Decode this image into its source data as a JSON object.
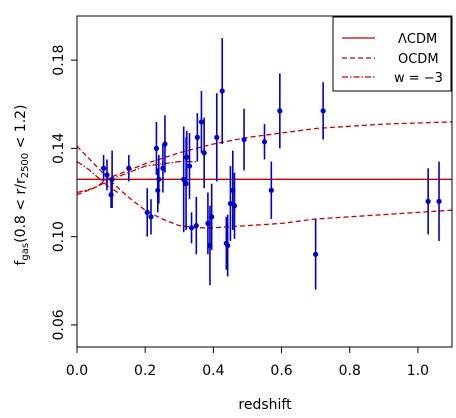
{
  "chart_data": {
    "type": "scatter",
    "xlabel": "redshift",
    "ylabel": {
      "prefix": "f",
      "prefix_sub": "gas",
      "mid": "(0.8 < r/r",
      "mid_sub": "2500",
      "suffix": " < 1.2)"
    },
    "xlim": [
      0.0,
      1.1
    ],
    "ylim": [
      0.05,
      0.2
    ],
    "x_ticks": [
      0.0,
      0.2,
      0.4,
      0.6,
      0.8,
      1.0
    ],
    "x_tick_labels": [
      "0.0",
      "0.2",
      "0.4",
      "0.6",
      "0.8",
      "1.0"
    ],
    "y_ticks": [
      0.06,
      0.1,
      0.14,
      0.18
    ],
    "y_tick_labels": [
      "0.06",
      "0.10",
      "0.14",
      "0.18"
    ],
    "legend": {
      "position": "top-right",
      "entries": [
        {
          "label": "ΛCDM",
          "style": "solid"
        },
        {
          "label": "OCDM",
          "style": "dashed"
        },
        {
          "label": "w = −3",
          "style": "dashdot"
        }
      ]
    },
    "colors": {
      "points": "#0000cc",
      "models": "#cc0000"
    },
    "points": [
      {
        "x": 0.078,
        "y": 0.131,
        "err": 0.006
      },
      {
        "x": 0.088,
        "y": 0.128,
        "err": 0.007
      },
      {
        "x": 0.1,
        "y": 0.119,
        "err": 0.006
      },
      {
        "x": 0.103,
        "y": 0.126,
        "err": 0.013
      },
      {
        "x": 0.152,
        "y": 0.131,
        "err": 0.006
      },
      {
        "x": 0.206,
        "y": 0.111,
        "err": 0.011
      },
      {
        "x": 0.217,
        "y": 0.109,
        "err": 0.008
      },
      {
        "x": 0.233,
        "y": 0.14,
        "err": 0.012
      },
      {
        "x": 0.237,
        "y": 0.121,
        "err": 0.01
      },
      {
        "x": 0.24,
        "y": 0.126,
        "err": 0.011
      },
      {
        "x": 0.252,
        "y": 0.131,
        "err": 0.011
      },
      {
        "x": 0.258,
        "y": 0.142,
        "err": 0.013
      },
      {
        "x": 0.313,
        "y": 0.126,
        "err": 0.024
      },
      {
        "x": 0.32,
        "y": 0.124,
        "err": 0.021
      },
      {
        "x": 0.322,
        "y": 0.136,
        "err": 0.012
      },
      {
        "x": 0.33,
        "y": 0.132,
        "err": 0.015
      },
      {
        "x": 0.336,
        "y": 0.104,
        "err": 0.007
      },
      {
        "x": 0.35,
        "y": 0.105,
        "err": 0.013
      },
      {
        "x": 0.353,
        "y": 0.145,
        "err": 0.011
      },
      {
        "x": 0.365,
        "y": 0.152,
        "err": 0.014
      },
      {
        "x": 0.373,
        "y": 0.138,
        "err": 0.016
      },
      {
        "x": 0.384,
        "y": 0.106,
        "err": 0.014
      },
      {
        "x": 0.39,
        "y": 0.096,
        "err": 0.018
      },
      {
        "x": 0.395,
        "y": 0.109,
        "err": 0.015
      },
      {
        "x": 0.41,
        "y": 0.145,
        "err": 0.02
      },
      {
        "x": 0.426,
        "y": 0.166,
        "err": 0.024
      },
      {
        "x": 0.438,
        "y": 0.097,
        "err": 0.012
      },
      {
        "x": 0.442,
        "y": 0.096,
        "err": 0.014
      },
      {
        "x": 0.45,
        "y": 0.115,
        "err": 0.017
      },
      {
        "x": 0.457,
        "y": 0.121,
        "err": 0.018
      },
      {
        "x": 0.462,
        "y": 0.114,
        "err": 0.015
      },
      {
        "x": 0.49,
        "y": 0.144,
        "err": 0.014
      },
      {
        "x": 0.55,
        "y": 0.143,
        "err": 0.008
      },
      {
        "x": 0.57,
        "y": 0.121,
        "err": 0.013
      },
      {
        "x": 0.595,
        "y": 0.157,
        "err": 0.017
      },
      {
        "x": 0.7,
        "y": 0.092,
        "err": 0.016
      },
      {
        "x": 0.722,
        "y": 0.157,
        "err": 0.013
      },
      {
        "x": 1.03,
        "y": 0.116,
        "err": 0.015
      },
      {
        "x": 1.062,
        "y": 0.116,
        "err": 0.018
      }
    ],
    "models": [
      {
        "name": "ΛCDM",
        "style": "solid",
        "x": [
          0.0,
          1.1
        ],
        "y": [
          0.126,
          0.126
        ]
      },
      {
        "name": "OCDM",
        "style": "dashed",
        "x": [
          0.0,
          0.05,
          0.1,
          0.2,
          0.3,
          0.4,
          0.5,
          0.6,
          0.7,
          0.8,
          0.9,
          1.0,
          1.1
        ],
        "y": [
          0.119,
          0.122,
          0.127,
          0.133,
          0.138,
          0.142,
          0.145,
          0.147,
          0.149,
          0.15,
          0.151,
          0.1515,
          0.152
        ]
      },
      {
        "name": "OCDM-lower",
        "style": "dashed",
        "x": [
          0.0,
          0.05,
          0.1,
          0.15,
          0.2,
          0.25,
          0.3,
          0.35,
          0.4,
          0.5,
          0.6,
          0.7,
          0.8,
          0.9,
          1.0,
          1.1
        ],
        "y": [
          0.141,
          0.133,
          0.125,
          0.118,
          0.112,
          0.108,
          0.105,
          0.104,
          0.104,
          0.105,
          0.106,
          0.108,
          0.109,
          0.11,
          0.111,
          0.112
        ]
      },
      {
        "name": "w = −3",
        "style": "dashdot",
        "x": [
          0.0,
          0.05,
          0.1,
          0.15,
          0.2,
          0.25,
          0.3,
          0.35
        ],
        "y": [
          0.12,
          0.122,
          0.126,
          0.129,
          0.132,
          0.133,
          0.134,
          0.134
        ]
      },
      {
        "name": "w = −3 lower",
        "style": "dashdot",
        "x": [
          0.0,
          0.03,
          0.06,
          0.09,
          0.12
        ],
        "y": [
          0.134,
          0.131,
          0.127,
          0.123,
          0.12
        ]
      }
    ]
  }
}
